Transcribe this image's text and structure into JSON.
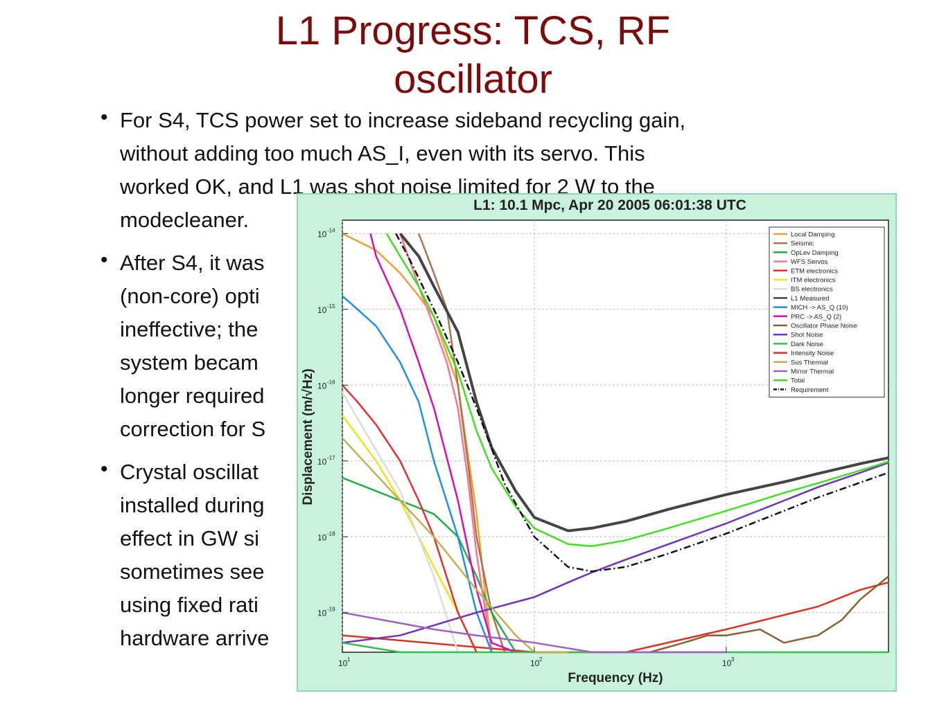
{
  "slide": {
    "title_line1": "L1 Progress: TCS, RF",
    "title_line2": "oscillator",
    "bullets": [
      [
        "For S4, TCS power set to increase sideband recycling gain,",
        "without adding too much AS_I, even with its servo.  This",
        "worked OK, and L1 was shot noise limited for 2 W to the",
        "modecleaner."
      ],
      [
        "After S4, it was",
        "(non-core) opti",
        "ineffective; the",
        "system becam",
        "longer required",
        "correction for S"
      ],
      [
        "Crystal oscillat",
        "installed during",
        "effect in GW si",
        "sometimes see",
        "using fixed rati",
        "hardware arrive"
      ]
    ]
  },
  "chart_data": {
    "type": "line",
    "title": "L1: 10.1 Mpc, Apr 20 2005 06:01:38 UTC",
    "xlabel": "Frequency (Hz)",
    "ylabel": "Displacement (m/√Hz)",
    "xscale": "log",
    "yscale": "log",
    "xlim": [
      10,
      7000
    ],
    "ylim": [
      3e-20,
      1.5e-14
    ],
    "x_ticks": [
      "10",
      "10",
      "10"
    ],
    "x_tick_exps": [
      "1",
      "2",
      "3"
    ],
    "y_ticks": [
      "10",
      "10",
      "10",
      "10",
      "10",
      "10"
    ],
    "y_tick_exps": [
      "-14",
      "-15",
      "-16",
      "-17",
      "-18",
      "-19"
    ],
    "legend_position": "top-right",
    "series": [
      {
        "name": "Local Damping",
        "color": "#f0a030",
        "x": [
          10,
          15,
          20,
          25,
          30,
          40,
          50,
          60
        ],
        "y": [
          1e-14,
          6e-15,
          3e-15,
          1.5e-15,
          8e-16,
          1e-16,
          2e-18,
          3e-20
        ]
      },
      {
        "name": "Seismic",
        "color": "#b07050",
        "x": [
          25,
          30,
          35,
          40,
          45,
          50,
          60,
          70
        ],
        "y": [
          1e-14,
          3e-15,
          1e-15,
          1e-16,
          1e-17,
          1e-18,
          1e-19,
          3e-20
        ]
      },
      {
        "name": "OpLev Damping",
        "color": "#20b040",
        "x": [
          10,
          15,
          20,
          30,
          40,
          50,
          60,
          80
        ],
        "y": [
          6e-18,
          4e-18,
          3e-18,
          2e-18,
          1e-18,
          3e-19,
          1e-19,
          3e-20
        ]
      },
      {
        "name": "WFS Servos",
        "color": "#f07890",
        "x": [
          20,
          25,
          30,
          35,
          40,
          45,
          50,
          60
        ],
        "y": [
          1e-14,
          2e-15,
          6e-16,
          2e-16,
          5e-17,
          6e-18,
          6e-19,
          3e-20
        ]
      },
      {
        "name": "ETM electronics",
        "color": "#e03020",
        "x": [
          10,
          100,
          300,
          1000,
          3000,
          5000,
          7000
        ],
        "y": [
          5e-20,
          3e-20,
          3e-20,
          6e-20,
          1.2e-19,
          2e-19,
          2.5e-19
        ]
      },
      {
        "name": "ITM electronics",
        "color": "#f0e020",
        "x": [
          10,
          15,
          20,
          30,
          40,
          50
        ],
        "y": [
          4e-17,
          1e-17,
          3e-18,
          4e-19,
          1e-19,
          3e-20
        ]
      },
      {
        "name": "BS electronics",
        "color": "#dddddd",
        "x": [
          10,
          20,
          30,
          40
        ],
        "y": [
          8e-17,
          4e-18,
          3e-19,
          3e-20
        ]
      },
      {
        "name": "L1 Measured",
        "color": "#444444",
        "x": [
          20,
          25,
          30,
          40,
          50,
          60,
          80,
          100,
          150,
          200,
          300,
          500,
          1000,
          2000,
          3000,
          5000,
          7000
        ],
        "y": [
          1e-14,
          5e-15,
          2e-15,
          5e-16,
          6e-17,
          1.5e-17,
          4e-18,
          1.8e-18,
          1.2e-18,
          1.3e-18,
          1.6e-18,
          2.3e-18,
          3.6e-18,
          5.3e-18,
          6.8e-18,
          9.2e-18,
          1.1e-17
        ]
      },
      {
        "name": "MICH -> AS_Q (10)",
        "color": "#2090e0",
        "x": [
          10,
          12,
          15,
          20,
          25,
          30,
          40,
          50,
          60
        ],
        "y": [
          1.5e-15,
          1e-15,
          6e-16,
          2e-16,
          6e-17,
          1e-17,
          1e-18,
          1e-19,
          3e-20
        ]
      },
      {
        "name": "PRC -> AS_Q (2)",
        "color": "#d010c0",
        "x": [
          14,
          15,
          20,
          25,
          30,
          40,
          50,
          60,
          80
        ],
        "y": [
          1e-14,
          5e-15,
          1e-15,
          2e-16,
          5e-17,
          3e-18,
          2e-19,
          4e-20,
          3e-20
        ]
      },
      {
        "name": "Oscillator Phase Noise",
        "color": "#8a6030",
        "x": [
          400,
          600,
          800,
          1000,
          1500,
          2000,
          3000,
          4000,
          5000,
          7000
        ],
        "y": [
          3e-20,
          4e-20,
          5e-20,
          5e-20,
          6e-20,
          4e-20,
          5e-20,
          8e-20,
          1.5e-19,
          3e-19
        ]
      },
      {
        "name": "Shot Noise",
        "color": "#7030c0",
        "x": [
          10,
          20,
          50,
          100,
          150,
          200,
          300,
          500,
          1000,
          2000,
          3000,
          5000,
          7000
        ],
        "y": [
          4e-20,
          5e-20,
          1e-19,
          1.6e-19,
          2.5e-19,
          3.4e-19,
          5e-19,
          8e-19,
          1.5e-18,
          3e-18,
          4.5e-18,
          7e-18,
          9.5e-18
        ]
      },
      {
        "name": "Dark Noise",
        "color": "#30c050",
        "x": [
          10,
          20,
          50,
          100,
          200,
          500,
          1000,
          3000,
          7000
        ],
        "y": [
          4e-20,
          3e-20,
          3e-20,
          3e-20,
          3e-20,
          3e-20,
          3e-20,
          3e-20,
          3e-20
        ]
      },
      {
        "name": "Intensity Noise",
        "color": "#e03030",
        "x": [
          10,
          12,
          15,
          20,
          25,
          30,
          40,
          50
        ],
        "y": [
          1e-16,
          6e-17,
          3e-17,
          1e-17,
          3e-18,
          1e-18,
          1e-19,
          3e-20
        ]
      },
      {
        "name": "Sus Thermal",
        "color": "#c0b050",
        "x": [
          10,
          20,
          30,
          50,
          80,
          100,
          150
        ],
        "y": [
          2e-17,
          3e-18,
          1e-18,
          2e-19,
          5e-20,
          3e-20,
          3e-20
        ]
      },
      {
        "name": "Mirror Thermal",
        "color": "#a060c0",
        "x": [
          10,
          30,
          50,
          100,
          200,
          500,
          1000
        ],
        "y": [
          1e-19,
          6e-20,
          5e-20,
          4e-20,
          3e-20,
          3e-20,
          3e-20
        ]
      },
      {
        "name": "Total",
        "color": "#40e020",
        "x": [
          17,
          20,
          25,
          30,
          40,
          50,
          60,
          80,
          100,
          150,
          200,
          300,
          500,
          1000,
          2000,
          3000,
          5000,
          7000
        ],
        "y": [
          1e-14,
          5e-15,
          2e-15,
          8e-16,
          1.5e-16,
          2.5e-17,
          8e-18,
          2.5e-18,
          1.3e-18,
          8e-19,
          7.5e-19,
          9e-19,
          1.3e-18,
          2.2e-18,
          3.8e-18,
          5.1e-18,
          7.5e-18,
          9.8e-18
        ]
      },
      {
        "name": "Requirement",
        "color": "#111111",
        "dash": "dashdot",
        "x": [
          19,
          22,
          30,
          40,
          50,
          70,
          100,
          150,
          200,
          300,
          500,
          1000,
          2000,
          3000,
          5000,
          7000
        ],
        "y": [
          1e-14,
          5e-15,
          1e-15,
          2e-16,
          5e-17,
          5e-18,
          1e-18,
          4e-19,
          3.5e-19,
          4e-19,
          6e-19,
          1.1e-18,
          2.2e-18,
          3.3e-18,
          5.2e-18,
          7e-18
        ]
      }
    ]
  }
}
